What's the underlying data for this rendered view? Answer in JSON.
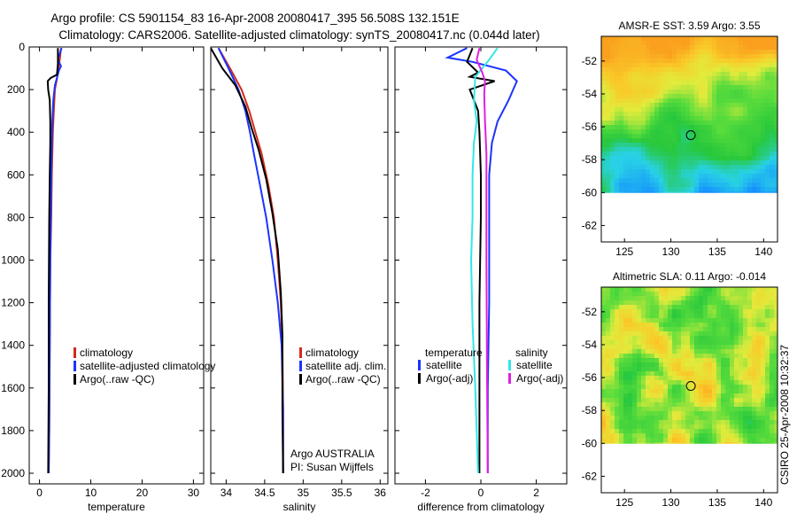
{
  "figure": {
    "title_line1": "Argo profile: CS 5901154_83 16-Apr-2008 20080417_395 56.508S 132.151E",
    "title_line2": "Climatology: CARS2006. Satellite-adjusted climatology: synTS_20080417.nc (0.044d later)",
    "side_stamp": "CSIRO 25-Apr-2008 10:32:37",
    "colors": {
      "climatology": "#d42a1a",
      "satellite": "#1c33ff",
      "argo": "#000000",
      "sat_salinity": "#33e6e6",
      "argo_adj_salinity": "#e020e0"
    }
  },
  "chart_data": [
    {
      "id": "temperature-profile",
      "type": "line",
      "xlabel": "temperature",
      "ylabel": "",
      "xlim": [
        -2,
        32
      ],
      "ylim": [
        2060,
        0
      ],
      "xticks": [
        0,
        10,
        20,
        30
      ],
      "yticks": [
        0,
        200,
        400,
        600,
        800,
        1000,
        1200,
        1400,
        1600,
        1800,
        2000
      ],
      "legend": [
        "climatology",
        "satellite-adjusted climatology",
        "Argo(..raw -QC)"
      ],
      "series": [
        {
          "name": "climatology",
          "color": "#d42a1a",
          "x": [
            4.2,
            4.0,
            3.7,
            3.4,
            3.0,
            2.8,
            2.6,
            2.5,
            2.4,
            2.3,
            2.1,
            2.0,
            1.9,
            1.8
          ],
          "y": [
            5,
            50,
            100,
            150,
            200,
            300,
            400,
            500,
            600,
            800,
            1000,
            1400,
            1800,
            2000
          ]
        },
        {
          "name": "satellite-adjusted climatology",
          "color": "#1c33ff",
          "x": [
            4.3,
            3.6,
            4.2,
            3.8,
            3.0,
            2.7,
            2.5,
            2.4,
            2.3,
            2.2,
            2.1,
            2.0,
            1.9,
            1.8
          ],
          "y": [
            5,
            60,
            90,
            110,
            180,
            250,
            350,
            450,
            600,
            800,
            1000,
            1400,
            1800,
            2000
          ]
        },
        {
          "name": "Argo(..raw -QC)",
          "color": "#000000",
          "x": [
            3.6,
            3.6,
            3.4,
            2.2,
            1.6,
            1.7,
            2.0,
            2.1,
            2.1,
            2.0,
            1.9,
            1.8,
            1.8,
            1.7
          ],
          "y": [
            5,
            80,
            130,
            145,
            160,
            200,
            250,
            350,
            450,
            600,
            800,
            1200,
            1600,
            2000
          ]
        }
      ]
    },
    {
      "id": "salinity-profile",
      "type": "line",
      "xlabel": "salinity",
      "ylabel": "",
      "xlim": [
        33.8,
        36.1
      ],
      "ylim": [
        2060,
        0
      ],
      "xticks": [
        34,
        34.5,
        35,
        35.5,
        36
      ],
      "xticklabels": [
        "34",
        "34.5",
        "35",
        "35.5",
        "36"
      ],
      "legend": [
        "climatology",
        "satellite adj. clim.",
        "Argo(..raw -QC)"
      ],
      "annotations": [
        "Argo AUSTRALIA",
        "PI: Susan Wijffels"
      ],
      "series": [
        {
          "name": "climatology",
          "color": "#d42a1a",
          "x": [
            33.9,
            34.05,
            34.2,
            34.3,
            34.38,
            34.46,
            34.55,
            34.62,
            34.67,
            34.71,
            34.73,
            34.74,
            34.74
          ],
          "y": [
            5,
            100,
            200,
            300,
            400,
            500,
            650,
            800,
            1000,
            1200,
            1400,
            1700,
            2000
          ]
        },
        {
          "name": "satellite adj. clim.",
          "color": "#1c33ff",
          "x": [
            33.9,
            34.03,
            34.16,
            34.25,
            34.31,
            34.36,
            34.44,
            34.52,
            34.6,
            34.67,
            34.72,
            34.74,
            34.74
          ],
          "y": [
            5,
            100,
            200,
            300,
            400,
            500,
            650,
            800,
            1000,
            1200,
            1400,
            1700,
            2000
          ]
        },
        {
          "name": "Argo(..raw -QC)",
          "color": "#000000",
          "x": [
            33.8,
            33.95,
            34.12,
            34.25,
            34.33,
            34.42,
            34.52,
            34.6,
            34.67,
            34.71,
            34.73,
            34.73,
            34.74
          ],
          "y": [
            5,
            100,
            180,
            280,
            380,
            480,
            620,
            780,
            950,
            1150,
            1350,
            1700,
            2000
          ]
        }
      ]
    },
    {
      "id": "difference-profile",
      "type": "line",
      "xlabel": "difference from climatology",
      "ylabel": "",
      "xlim": [
        -3.1,
        3.1
      ],
      "ylim": [
        2060,
        0
      ],
      "xticks": [
        -2,
        0,
        2
      ],
      "legend_temperature_title": "temperature",
      "legend_salinity_title": "salinity",
      "legend": [
        "satellite",
        "Argo(-adj)",
        "satellite",
        "Argo(-adj)"
      ],
      "series": [
        {
          "name": "temperature satellite",
          "color": "#1c33ff",
          "x": [
            -0.5,
            -1.2,
            -0.3,
            0.9,
            1.3,
            1.0,
            0.6,
            0.4,
            0.3,
            0.3,
            0.3,
            0.25,
            0.25
          ],
          "y": [
            5,
            50,
            70,
            110,
            160,
            250,
            350,
            450,
            600,
            800,
            1200,
            1600,
            2000
          ]
        },
        {
          "name": "temperature Argo(-adj)",
          "color": "#000000",
          "x": [
            -0.3,
            -0.5,
            -0.1,
            -0.4,
            0.5,
            -0.4,
            -0.1,
            -0.05,
            0.0,
            0.0,
            -0.05,
            -0.05,
            -0.05
          ],
          "y": [
            5,
            70,
            120,
            140,
            160,
            200,
            300,
            400,
            600,
            800,
            1200,
            1600,
            2000
          ]
        },
        {
          "name": "salinity satellite",
          "color": "#33e6e6",
          "x": [
            0.6,
            0.3,
            -0.2,
            -0.25,
            -0.15,
            -0.25,
            -0.3,
            -0.3,
            -0.35,
            -0.3,
            -0.2,
            -0.1
          ],
          "y": [
            5,
            60,
            140,
            250,
            350,
            450,
            600,
            800,
            1000,
            1300,
            1600,
            2000
          ]
        },
        {
          "name": "salinity Argo(-adj)",
          "color": "#e020e0",
          "x": [
            -0.05,
            -0.15,
            0.05,
            0.15,
            0.12,
            0.15,
            0.2,
            0.2,
            0.2,
            0.22,
            0.25
          ],
          "y": [
            5,
            60,
            120,
            160,
            220,
            350,
            500,
            700,
            1000,
            1500,
            2000
          ]
        }
      ]
    },
    {
      "id": "sst-map",
      "type": "heatmap",
      "title": "AMSR-E SST: 3.59 Argo: 3.55",
      "xlim": [
        122.5,
        141.5
      ],
      "ylim": [
        -63,
        -50.5
      ],
      "xticks": [
        125,
        130,
        135,
        140
      ],
      "yticks": [
        -52,
        -54,
        -56,
        -58,
        -60,
        -62
      ],
      "data_extent": {
        "lon": [
          122.5,
          141.5
        ],
        "lat": [
          -60,
          -50.5
        ]
      },
      "argo_location": {
        "lon": 132.151,
        "lat": -56.508
      }
    },
    {
      "id": "sla-map",
      "type": "heatmap",
      "title": "Altimetric SLA: 0.11 Argo: -0.014",
      "xlim": [
        122.5,
        141.5
      ],
      "ylim": [
        -63,
        -50.5
      ],
      "xticks": [
        125,
        130,
        135,
        140
      ],
      "yticks": [
        -52,
        -54,
        -56,
        -58,
        -60,
        -62
      ],
      "data_extent": {
        "lon": [
          122.5,
          141.5
        ],
        "lat": [
          -60,
          -50.5
        ]
      },
      "argo_location": {
        "lon": 132.151,
        "lat": -56.508
      }
    }
  ]
}
